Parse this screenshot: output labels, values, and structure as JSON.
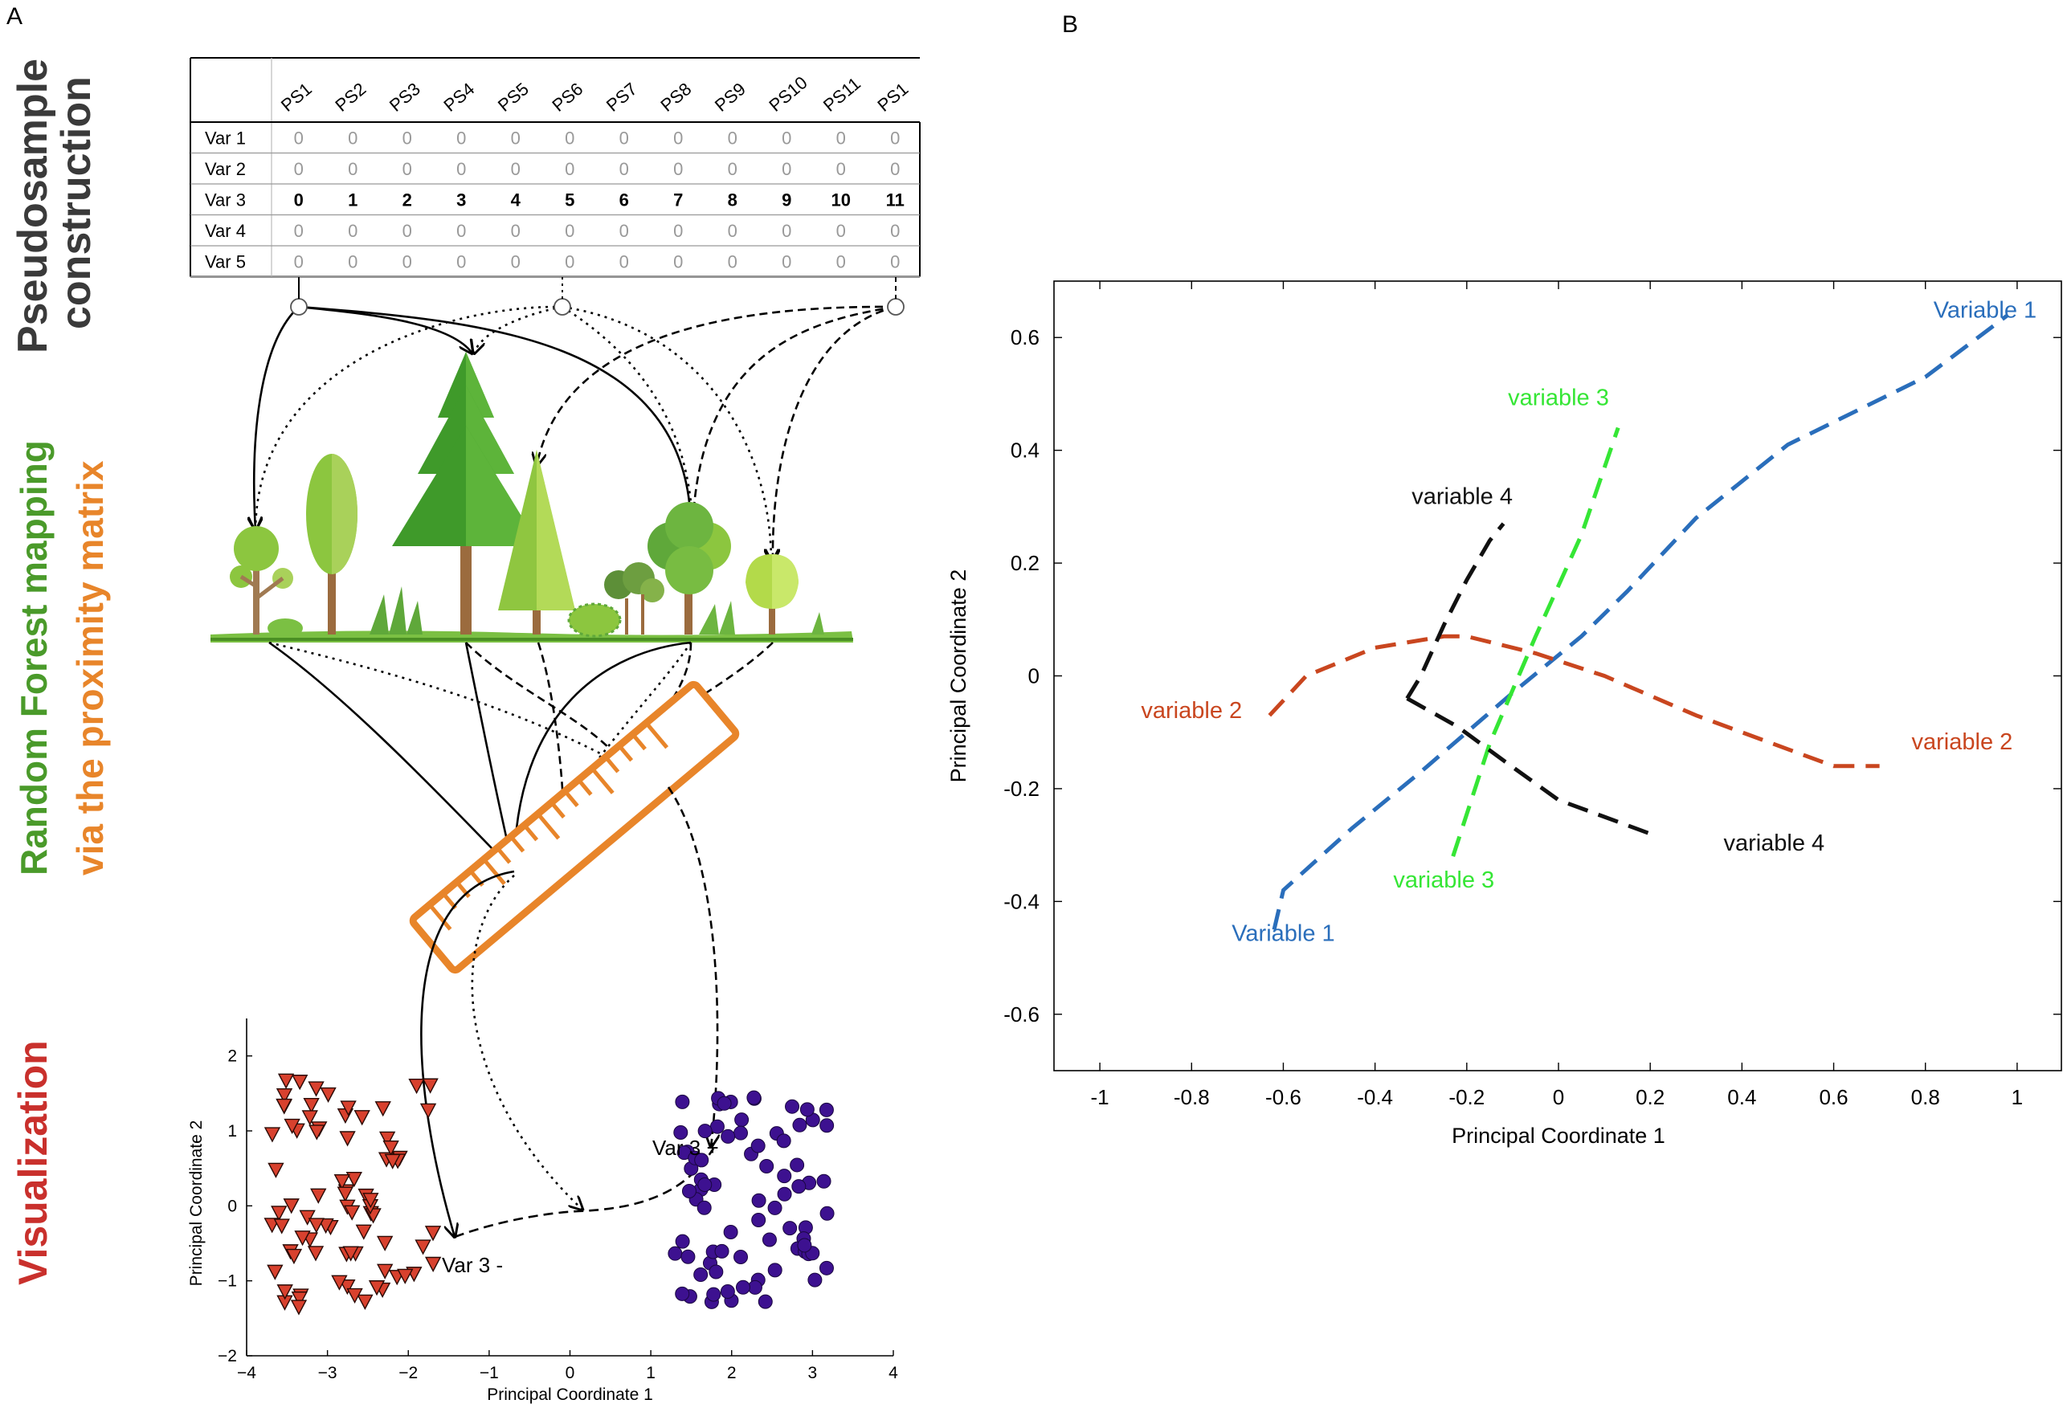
{
  "panel_a": {
    "label": "A",
    "side_titles": {
      "line1": "Pseudosample",
      "line2": "construction",
      "rf_green": "Random Forest mapping",
      "rf_orange": "via the proximity matrix",
      "visualization": "Visualization"
    },
    "colors": {
      "dark": "#3a3a3a",
      "green": "#4a9a2a",
      "orange": "#e8852a",
      "red": "#c9302c"
    },
    "table": {
      "columns": [
        "PS1",
        "PS2",
        "PS3",
        "PS4",
        "PS5",
        "PS6",
        "PS7",
        "PS8",
        "PS9",
        "PS10",
        "PS11",
        "PS1"
      ],
      "rows": [
        {
          "label": "Var 1",
          "values": [
            "0",
            "0",
            "0",
            "0",
            "0",
            "0",
            "0",
            "0",
            "0",
            "0",
            "0",
            "0"
          ],
          "bold": false
        },
        {
          "label": "Var 2",
          "values": [
            "0",
            "0",
            "0",
            "0",
            "0",
            "0",
            "0",
            "0",
            "0",
            "0",
            "0",
            "0"
          ],
          "bold": false
        },
        {
          "label": "Var 3",
          "values": [
            "0",
            "1",
            "2",
            "3",
            "4",
            "5",
            "6",
            "7",
            "8",
            "9",
            "10",
            "11"
          ],
          "bold": true
        },
        {
          "label": "Var 4",
          "values": [
            "0",
            "0",
            "0",
            "0",
            "0",
            "0",
            "0",
            "0",
            "0",
            "0",
            "0",
            "0"
          ],
          "bold": false
        },
        {
          "label": "Var 5",
          "values": [
            "0",
            "0",
            "0",
            "0",
            "0",
            "0",
            "0",
            "0",
            "0",
            "0",
            "0",
            "0"
          ],
          "bold": false
        }
      ]
    },
    "scatter": {
      "xlabel": "Principal Coordinate 1",
      "ylabel": "Principal Coordinate 2",
      "xticks": [
        "−4",
        "−3",
        "−2",
        "−1",
        "0",
        "1",
        "2",
        "3",
        "4"
      ],
      "yticks": [
        "2",
        "1",
        "0",
        "−1",
        "−2"
      ],
      "annotations": {
        "minus": "Var 3 -",
        "plus": "Var 3 +"
      },
      "colors": {
        "triangle": "#d8412e",
        "circle": "#3d1190"
      }
    }
  },
  "panel_b": {
    "label": "B",
    "chart_data": {
      "type": "line",
      "xlabel": "Principal Coordinate 1",
      "ylabel": "Principal Coordinate 2",
      "xlim": [
        -1.1,
        1.1
      ],
      "ylim": [
        -0.7,
        0.7
      ],
      "xticks": [
        "-1",
        "-0.8",
        "-0.6",
        "-0.4",
        "-0.2",
        "0",
        "0.2",
        "0.4",
        "0.6",
        "0.8",
        "1"
      ],
      "yticks": [
        "0.6",
        "0.4",
        "0.2",
        "0",
        "-0.2",
        "-0.4",
        "-0.6"
      ],
      "series": [
        {
          "color": "#2a6ebb",
          "x": [
            -0.62,
            -0.6,
            -0.45,
            -0.3,
            -0.1,
            0.05,
            0.15,
            0.3,
            0.5,
            0.6,
            0.8,
            0.98
          ],
          "y": [
            -0.45,
            -0.38,
            -0.27,
            -0.17,
            -0.03,
            0.07,
            0.15,
            0.28,
            0.41,
            0.45,
            0.53,
            0.64
          ]
        },
        {
          "color": "#c9461f",
          "x": [
            -0.63,
            -0.55,
            -0.4,
            -0.25,
            -0.2,
            -0.05,
            0.1,
            0.3,
            0.5,
            0.6,
            0.7
          ],
          "y": [
            -0.07,
            0.0,
            0.05,
            0.07,
            0.07,
            0.04,
            0.0,
            -0.07,
            -0.13,
            -0.16,
            -0.16
          ]
        },
        {
          "color": "#35e635",
          "x": [
            -0.23,
            -0.15,
            -0.05,
            0.05,
            0.13
          ],
          "y": [
            -0.32,
            -0.12,
            0.07,
            0.25,
            0.44
          ]
        },
        {
          "color": "#111111",
          "x": [
            -0.33,
            -0.22,
            -0.12,
            0.0,
            0.1,
            0.2
          ],
          "y": [
            -0.04,
            -0.09,
            -0.15,
            -0.22,
            -0.25,
            -0.28
          ]
        },
        {
          "color": "#111111",
          "x": [
            -0.33,
            -0.3,
            -0.25,
            -0.2,
            -0.15,
            -0.12
          ],
          "y": [
            -0.04,
            0.0,
            0.09,
            0.17,
            0.24,
            0.27
          ]
        }
      ],
      "labels": [
        {
          "text": "Variable 1",
          "color": "#2a6ebb",
          "x": 0.93,
          "y": 0.635
        },
        {
          "text": "Variable 1",
          "color": "#2a6ebb",
          "x": -0.6,
          "y": -0.47
        },
        {
          "text": "variable 2",
          "color": "#c9461f",
          "x": -0.8,
          "y": -0.075
        },
        {
          "text": "variable 2",
          "color": "#c9461f",
          "x": 0.88,
          "y": -0.13
        },
        {
          "text": "variable 3",
          "color": "#35e635",
          "x": 0.0,
          "y": 0.48
        },
        {
          "text": "variable 3",
          "color": "#35e635",
          "x": -0.25,
          "y": -0.375
        },
        {
          "text": "variable 4",
          "color": "#111111",
          "x": -0.21,
          "y": 0.305
        },
        {
          "text": "variable 4",
          "color": "#111111",
          "x": 0.47,
          "y": -0.31
        }
      ]
    }
  }
}
